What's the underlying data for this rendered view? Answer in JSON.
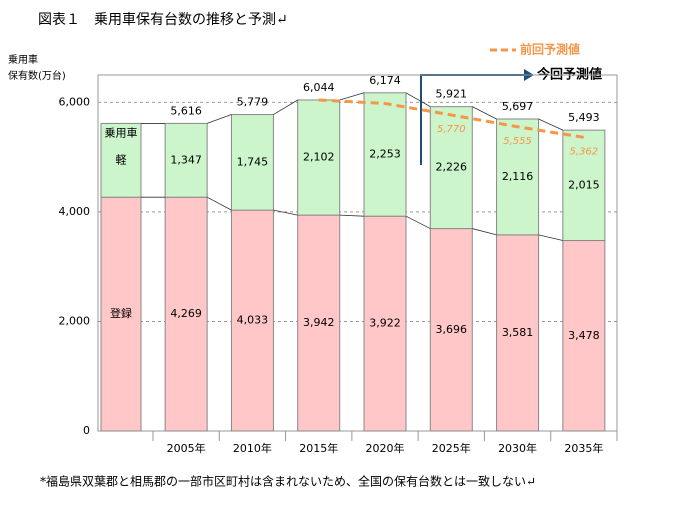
{
  "chart_data": {
    "type": "bar",
    "stacked": true,
    "title": "図表１　乗用車保有台数の推移と予測↵",
    "y_label": [
      "乗用車",
      "保有数(万台)"
    ],
    "categories": [
      "2005年",
      "2010年",
      "2015年",
      "2020年",
      "2025年",
      "2030年",
      "2035年"
    ],
    "series": [
      {
        "name": "登録",
        "color": "#ffc7c7",
        "values": [
          4269,
          4033,
          3942,
          3922,
          3696,
          3581,
          3478
        ],
        "value_labels": [
          "4,269",
          "4,033",
          "3,942",
          "3,922",
          "3,696",
          "3,581",
          "3,478"
        ]
      },
      {
        "name": "軽",
        "color": "#ccf5cc",
        "values": [
          1347,
          1745,
          2102,
          2253,
          2226,
          2116,
          2015
        ],
        "value_labels": [
          "1,347",
          "1,745",
          "2,102",
          "2,253",
          "2,226",
          "2,116",
          "2,015"
        ]
      }
    ],
    "total_label": "乗用車",
    "totals": [
      5616,
      5779,
      6044,
      6174,
      5921,
      5697,
      5493
    ],
    "totals_labels": [
      "5,616",
      "5,779",
      "6,044",
      "6,174",
      "5,921",
      "5,697",
      "5,493"
    ],
    "previous_forecast": {
      "name": "前回予測値",
      "color": "#f79646",
      "values": [
        null,
        null,
        6044,
        5980,
        5770,
        5555,
        5362
      ],
      "value_labels": [
        null,
        null,
        null,
        null,
        "5,770",
        "5,555",
        "5,362"
      ]
    },
    "current_forecast_label": "今回予測値",
    "ylim": [
      0,
      6500
    ],
    "yticks": [
      0,
      {
        "value": 2000,
        "label": "2,000"
      },
      {
        "value": 4000,
        "label": "4,000"
      },
      {
        "value": 6000,
        "label": "6,000"
      }
    ],
    "grid": true,
    "footnote": "*福島県双葉郡と相馬郡の一部市区町村は含まれないため、全国の保有台数とは一致しない↵"
  }
}
